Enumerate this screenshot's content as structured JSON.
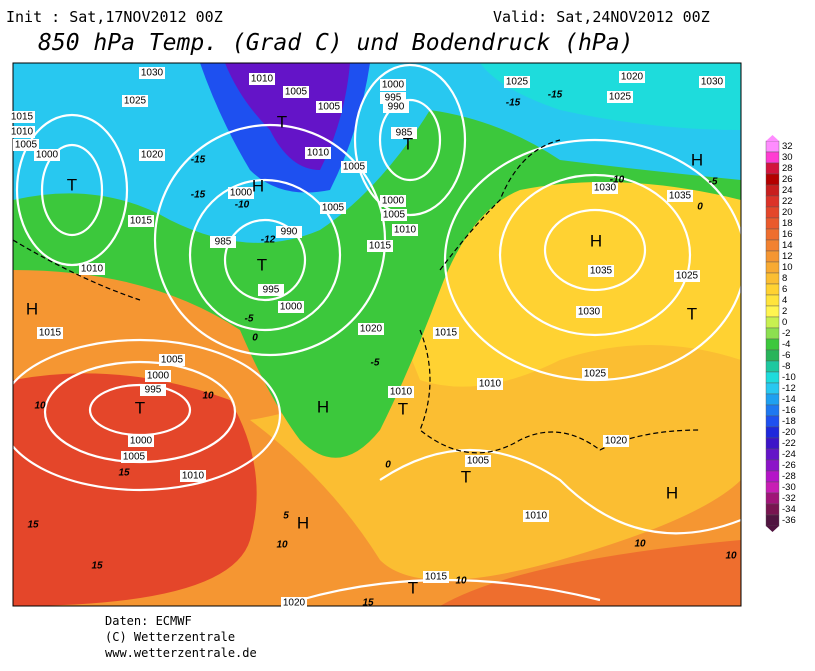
{
  "header": {
    "init": "Init : Sat,17NOV2012 00Z",
    "valid": "Valid: Sat,24NOV2012 00Z",
    "title": "850 hPa Temp. (Grad C) und Bodendruck (hPa)"
  },
  "map": {
    "isobar_labels": [
      "1030",
      "1025",
      "1015",
      "1010",
      "1005",
      "1000",
      "1020",
      "1015",
      "1010",
      "1015",
      "1000",
      "990",
      "995",
      "1000",
      "985",
      "1010",
      "1005",
      "1005",
      "1010",
      "1005",
      "1000",
      "995",
      "990",
      "985",
      "1000",
      "1005",
      "1010",
      "1015",
      "1005",
      "1020",
      "1015",
      "1010",
      "1005",
      "1000",
      "995",
      "1000",
      "1005",
      "1010",
      "1005",
      "1010",
      "1020",
      "1025",
      "1030",
      "1035",
      "1035",
      "1030",
      "1030",
      "1020",
      "1025",
      "1025",
      "1025",
      "1010",
      "1015",
      "1020"
    ],
    "centers": [
      "T",
      "H",
      "H",
      "T",
      "T",
      "T",
      "H",
      "T",
      "H",
      "T",
      "H",
      "T",
      "H",
      "H",
      "T",
      "T"
    ],
    "temperature_labels": [
      "-15",
      "-15",
      "-10",
      "-5",
      "0",
      "10",
      "10",
      "15",
      "15",
      "15",
      "10",
      "10",
      "10",
      "10",
      "15",
      "5",
      "0",
      "-5",
      "0",
      "-5",
      "-15",
      "-15",
      "-10",
      "-12"
    ]
  },
  "legend": {
    "values": [
      32,
      30,
      28,
      26,
      24,
      22,
      20,
      18,
      16,
      14,
      12,
      10,
      8,
      6,
      4,
      2,
      0,
      -2,
      -4,
      -6,
      -8,
      -10,
      -12,
      -14,
      -16,
      -18,
      -20,
      -22,
      -24,
      -26,
      -28,
      -30,
      -32,
      -34,
      -36
    ],
    "colors": [
      "#ff8cff",
      "#ff3cd2",
      "#d2143c",
      "#b40000",
      "#c81e1e",
      "#dc3228",
      "#e4462a",
      "#ea5a2c",
      "#ee6e2e",
      "#f28230",
      "#f59632",
      "#f8aa32",
      "#fbbe32",
      "#ffd232",
      "#ffe43c",
      "#fff550",
      "#c8f050",
      "#8ce050",
      "#3cc83c",
      "#28b45a",
      "#1ec8a0",
      "#1edcdc",
      "#28c8f0",
      "#1ea0f0",
      "#1e78f0",
      "#1e50f0",
      "#1e28dc",
      "#3c14c8",
      "#6414c8",
      "#8c14c8",
      "#b414c8",
      "#c81eb4",
      "#a01478",
      "#781450",
      "#501440"
    ]
  },
  "footer": {
    "lines": [
      "Daten: ECMWF",
      "(C) Wetterzentrale",
      "www.wetterzentrale.de"
    ]
  }
}
